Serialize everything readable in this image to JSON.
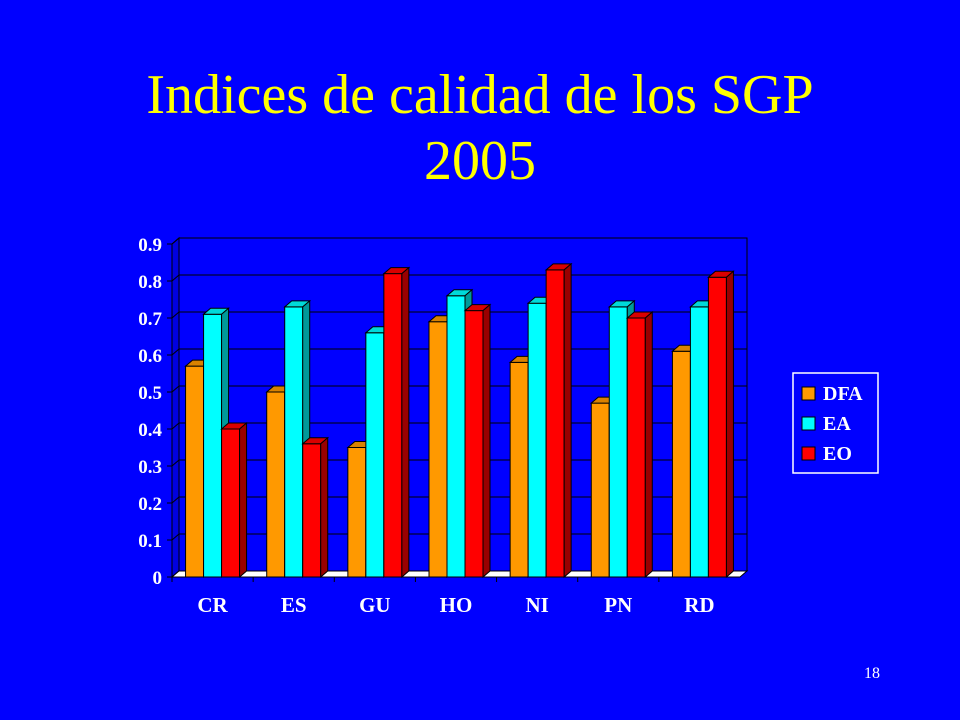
{
  "slide": {
    "title_line1": "Indices de calidad de los SGP",
    "title_line2": "2005",
    "page_number": "18",
    "background_color": "#0000FF",
    "title_color": "#FFFF00"
  },
  "chart_data": {
    "type": "bar",
    "categories": [
      "CR",
      "ES",
      "GU",
      "HO",
      "NI",
      "PN",
      "RD"
    ],
    "series": [
      {
        "name": "DFA",
        "color": "#FF9900",
        "values": [
          0.57,
          0.5,
          0.35,
          0.69,
          0.58,
          0.47,
          0.61
        ]
      },
      {
        "name": "EA",
        "color": "#00FFFF",
        "values": [
          0.71,
          0.73,
          0.66,
          0.76,
          0.74,
          0.73,
          0.73
        ]
      },
      {
        "name": "EO",
        "color": "#FF0000",
        "values": [
          0.4,
          0.36,
          0.82,
          0.72,
          0.83,
          0.7,
          0.81
        ]
      }
    ],
    "y_ticks": [
      "0",
      "0.1",
      "0.2",
      "0.3",
      "0.4",
      "0.5",
      "0.6",
      "0.7",
      "0.8",
      "0.9"
    ],
    "ylim": [
      0,
      0.9
    ],
    "grid": true,
    "legend_position": "right",
    "style": "3d-clustered-column"
  }
}
